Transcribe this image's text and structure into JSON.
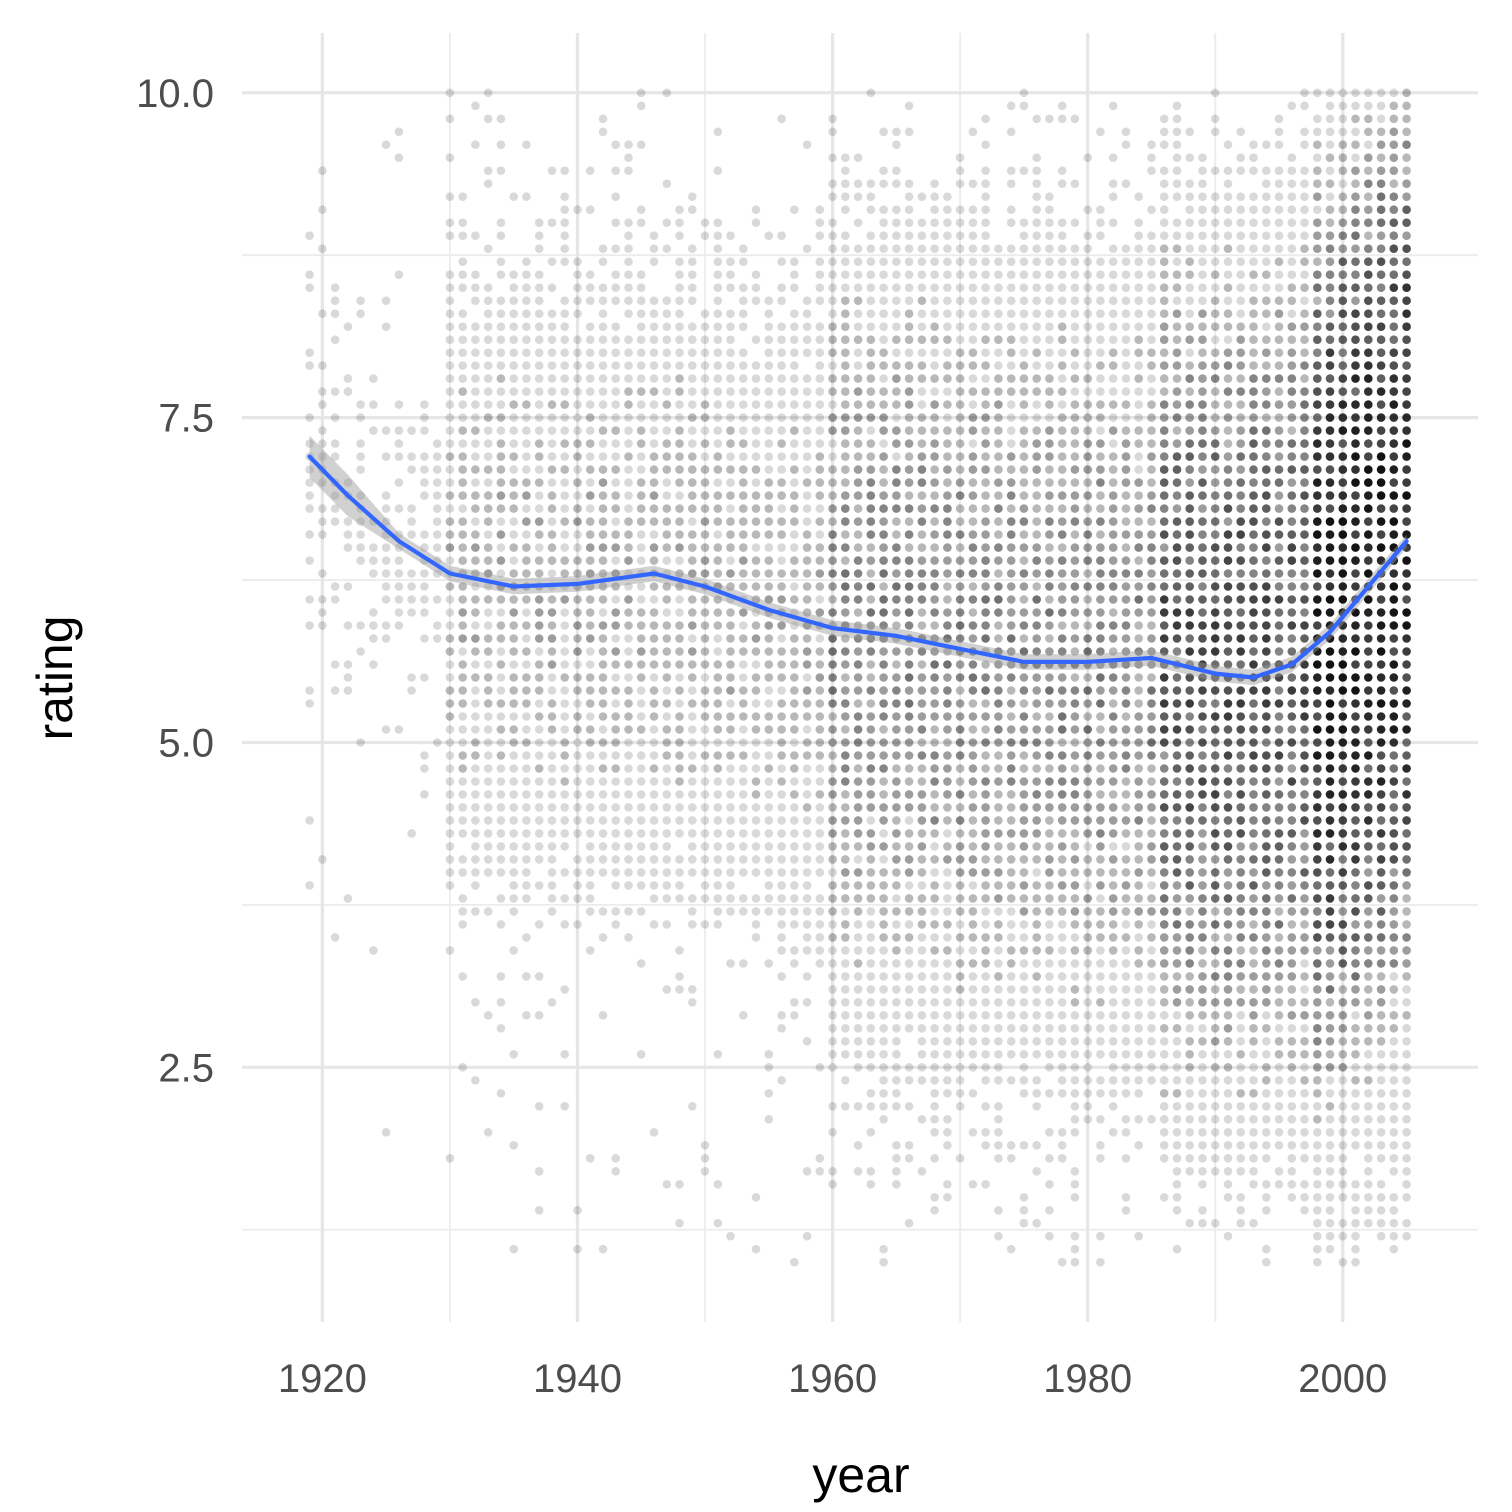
{
  "chart_data": {
    "type": "scatter",
    "title": "",
    "xlabel": "year",
    "ylabel": "rating",
    "xlim": [
      1913.7,
      2010.6
    ],
    "ylim": [
      0.54,
      10.46
    ],
    "x_ticks": [
      1920,
      1940,
      1960,
      1980,
      2000
    ],
    "x_tick_labels": [
      "1920",
      "1940",
      "1960",
      "1980",
      "2000"
    ],
    "y_ticks": [
      2.5,
      5.0,
      7.5,
      10.0
    ],
    "y_tick_labels": [
      "2.5",
      "5.0",
      "7.5",
      "10.0"
    ],
    "x_minor_ticks": [
      1930,
      1950,
      1970,
      1990
    ],
    "y_minor_ticks": [
      1.25,
      3.75,
      6.25,
      8.75
    ],
    "grid": true,
    "legend": "none",
    "point_color": "#000000",
    "point_alpha": 0.15,
    "points_note_grid": {
      "x_step": 1,
      "y_step": 0.1,
      "x_range": [
        1919,
        2005
      ],
      "y_range": [
        1.0,
        10.0
      ]
    },
    "smooth": {
      "color": "#3366ff",
      "band_color": "#999999",
      "x": [
        1919,
        1922,
        1926,
        1930,
        1935,
        1940,
        1946,
        1950,
        1955,
        1960,
        1965,
        1970,
        1975,
        1980,
        1985,
        1990,
        1993,
        1996,
        1999,
        2002,
        2005
      ],
      "y": [
        7.2,
        6.9,
        6.55,
        6.3,
        6.2,
        6.22,
        6.3,
        6.2,
        6.02,
        5.88,
        5.82,
        5.72,
        5.62,
        5.62,
        5.65,
        5.53,
        5.5,
        5.6,
        5.85,
        6.2,
        6.55
      ]
    }
  }
}
